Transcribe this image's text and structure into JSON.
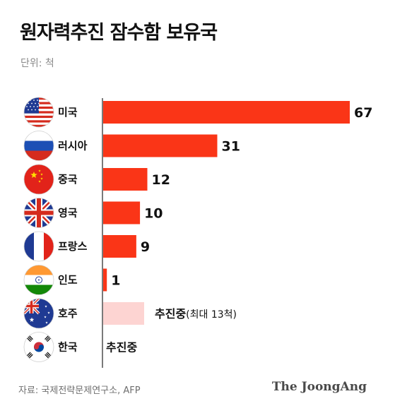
{
  "title": "원자력추진 잠수함 보유국",
  "unit_label": "단위: 척",
  "source": "자료: 국제전략문제연구소, AFP",
  "brand": "The JoongAng",
  "colors": {
    "bar": "#fa3517",
    "bar_planned": "#fdd4d2",
    "axis": "#222222"
  },
  "chart_data": {
    "type": "bar",
    "orientation": "horizontal",
    "categories": [
      "미국",
      "러시아",
      "중국",
      "영국",
      "프랑스",
      "인도",
      "호주",
      "한국"
    ],
    "values": [
      67,
      31,
      12,
      10,
      9,
      1,
      null,
      null
    ],
    "flags": [
      "usa-flag-icon",
      "russia-flag-icon",
      "china-flag-icon",
      "uk-flag-icon",
      "france-flag-icon",
      "india-flag-icon",
      "australia-flag-icon",
      "korea-flag-icon"
    ],
    "annotations": [
      {
        "category": "호주",
        "text": "추진중",
        "subtext": "(최대 13척)"
      },
      {
        "category": "한국",
        "text": "추진중"
      }
    ],
    "xlim": [
      0,
      67
    ]
  }
}
